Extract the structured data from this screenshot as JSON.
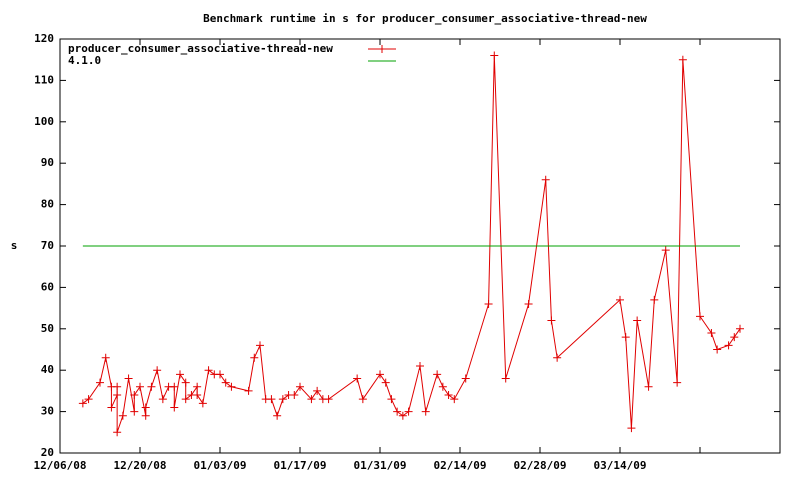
{
  "chart_data": {
    "type": "line",
    "title": "Benchmark runtime in s for producer_consumer_associative-thread-new",
    "y_label": "s",
    "legend": "top-left",
    "xlim": [
      "2008-12-06",
      "2009-04-11"
    ],
    "xticks": [
      {
        "value": "2008-12-06",
        "label": "12/06/08"
      },
      {
        "value": "2008-12-20",
        "label": "12/20/08"
      },
      {
        "value": "2009-01-03",
        "label": "01/03/09"
      },
      {
        "value": "2009-01-17",
        "label": "01/17/09"
      },
      {
        "value": "2009-01-31",
        "label": "01/31/09"
      },
      {
        "value": "2009-02-14",
        "label": "02/14/09"
      },
      {
        "value": "2009-02-28",
        "label": "02/28/09"
      },
      {
        "value": "2009-03-14",
        "label": "03/14/09"
      },
      {
        "value": "2009-03-28",
        "label": null
      },
      {
        "value": "2009-04-11",
        "label": null
      }
    ],
    "ylim": [
      20,
      120
    ],
    "yticks": [
      20,
      30,
      40,
      50,
      60,
      70,
      80,
      90,
      100,
      110,
      120
    ],
    "series": [
      {
        "name": "producer_consumer_associative-thread-new",
        "color": "#e00000",
        "marker": "+",
        "x": [
          "2008-12-10",
          "2008-12-11",
          "2008-12-13",
          "2008-12-14",
          "2008-12-15",
          "2008-12-15",
          "2008-12-16",
          "2008-12-16",
          "2008-12-16",
          "2008-12-17",
          "2008-12-18",
          "2008-12-19",
          "2008-12-19",
          "2008-12-20",
          "2008-12-21",
          "2008-12-21",
          "2008-12-22",
          "2008-12-23",
          "2008-12-24",
          "2008-12-25",
          "2008-12-26",
          "2008-12-26",
          "2008-12-27",
          "2008-12-28",
          "2008-12-28",
          "2008-12-29",
          "2008-12-30",
          "2008-12-30",
          "2008-12-31",
          "2009-01-01",
          "2009-01-02",
          "2009-01-03",
          "2009-01-04",
          "2009-01-05",
          "2009-01-08",
          "2009-01-09",
          "2009-01-10",
          "2009-01-11",
          "2009-01-12",
          "2009-01-13",
          "2009-01-14",
          "2009-01-15",
          "2009-01-16",
          "2009-01-17",
          "2009-01-19",
          "2009-01-20",
          "2009-01-21",
          "2009-01-22",
          "2009-01-27",
          "2009-01-28",
          "2009-01-31",
          "2009-02-01",
          "2009-02-02",
          "2009-02-03",
          "2009-02-04",
          "2009-02-05",
          "2009-02-07",
          "2009-02-08",
          "2009-02-10",
          "2009-02-11",
          "2009-02-12",
          "2009-02-13",
          "2009-02-15",
          "2009-02-19",
          "2009-02-20",
          "2009-02-22",
          "2009-02-26",
          "2009-03-01",
          "2009-03-02",
          "2009-03-03",
          "2009-03-14",
          "2009-03-15",
          "2009-03-16",
          "2009-03-17",
          "2009-03-19",
          "2009-03-20",
          "2009-03-22",
          "2009-03-24",
          "2009-03-25",
          "2009-03-28",
          "2009-03-30",
          "2009-03-31",
          "2009-04-02",
          "2009-04-03",
          "2009-04-04"
        ],
        "values": [
          32,
          33,
          37,
          43,
          36,
          31,
          34,
          36,
          25,
          29,
          38,
          30,
          34,
          36,
          29,
          31,
          36,
          40,
          33,
          36,
          36,
          31,
          39,
          37,
          33,
          34,
          36,
          34,
          32,
          40,
          39,
          39,
          37,
          36,
          35,
          43,
          46,
          33,
          33,
          29,
          33,
          34,
          34,
          36,
          33,
          35,
          33,
          33,
          38,
          33,
          39,
          37,
          33,
          30,
          29,
          30,
          41,
          30,
          39,
          36,
          34,
          33,
          38,
          56,
          116,
          38,
          56,
          86,
          52,
          43,
          57,
          48,
          26,
          52,
          36,
          57,
          69,
          37,
          115,
          53,
          49,
          45,
          46,
          48,
          50
        ]
      },
      {
        "name": "4.1.0",
        "color": "#00a000",
        "x": [
          "2008-12-10",
          "2009-04-04"
        ],
        "values": [
          70,
          70
        ]
      }
    ]
  }
}
